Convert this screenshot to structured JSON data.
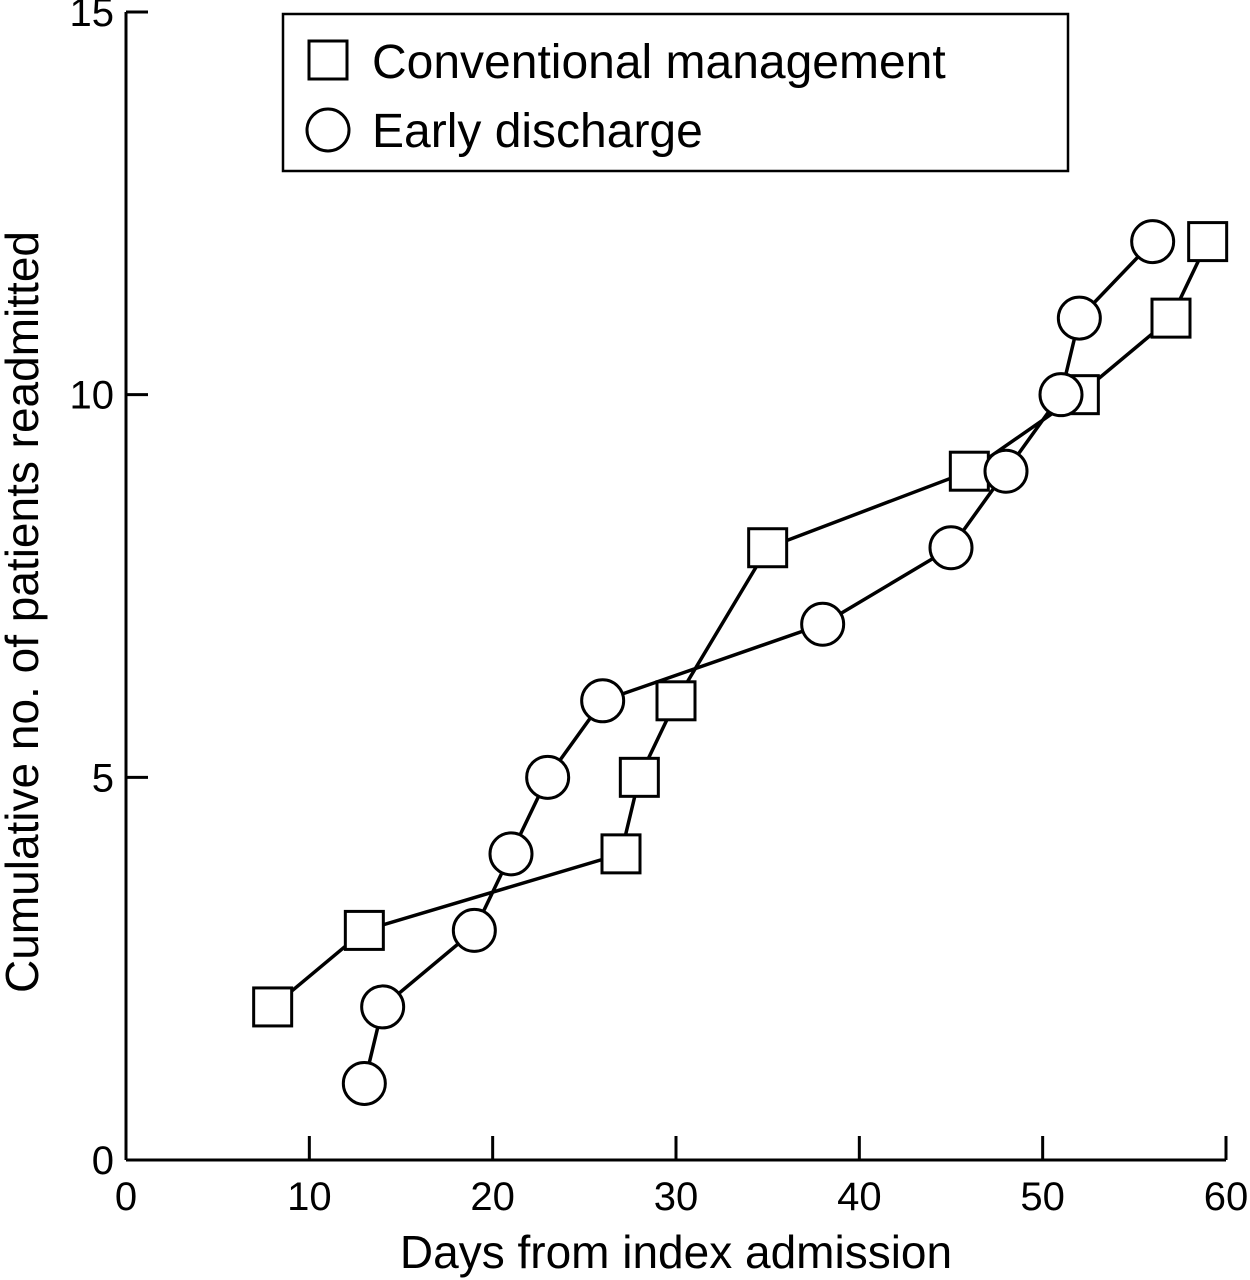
{
  "chart_data": {
    "type": "line",
    "title": "",
    "xlabel": "Days from index admission",
    "ylabel": "Cumulative no. of patients readmitted",
    "xlim": [
      0,
      60
    ],
    "ylim": [
      0,
      15
    ],
    "xticks": [
      0,
      10,
      20,
      30,
      40,
      50,
      60
    ],
    "yticks": [
      0,
      5,
      10,
      15
    ],
    "grid": false,
    "legend_position": "top",
    "series": [
      {
        "name": "Conventional management",
        "marker": "square",
        "points": [
          {
            "x": 8,
            "y": 2
          },
          {
            "x": 13,
            "y": 3
          },
          {
            "x": 27,
            "y": 4
          },
          {
            "x": 28,
            "y": 5
          },
          {
            "x": 30,
            "y": 6
          },
          {
            "x": 35,
            "y": 8
          },
          {
            "x": 46,
            "y": 9
          },
          {
            "x": 52,
            "y": 10
          },
          {
            "x": 57,
            "y": 11
          },
          {
            "x": 59,
            "y": 12
          }
        ]
      },
      {
        "name": "Early discharge",
        "marker": "circle",
        "points": [
          {
            "x": 13,
            "y": 1
          },
          {
            "x": 14,
            "y": 2
          },
          {
            "x": 19,
            "y": 3
          },
          {
            "x": 21,
            "y": 4
          },
          {
            "x": 23,
            "y": 5
          },
          {
            "x": 26,
            "y": 6
          },
          {
            "x": 38,
            "y": 7
          },
          {
            "x": 45,
            "y": 8
          },
          {
            "x": 48,
            "y": 9
          },
          {
            "x": 51,
            "y": 10
          },
          {
            "x": 52,
            "y": 11
          },
          {
            "x": 56,
            "y": 12
          }
        ]
      }
    ]
  }
}
